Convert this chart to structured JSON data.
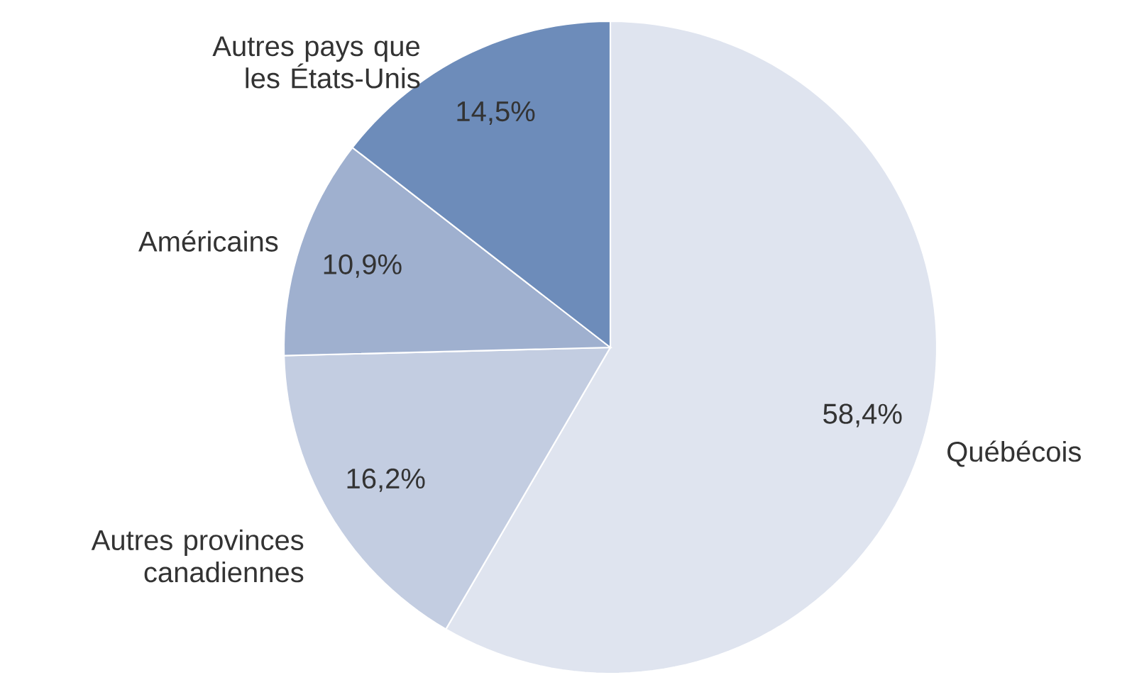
{
  "chart_data": {
    "type": "pie",
    "categories": [
      "Québécois",
      "Autres provinces canadiennes",
      "Américains",
      "Autres pays que les États-Unis"
    ],
    "values": [
      58.4,
      16.2,
      10.9,
      14.5
    ],
    "value_labels": [
      "58,4%",
      "16,2%",
      "10,9%",
      "14,5%"
    ],
    "colors": [
      "#dfe4ef",
      "#c3cde1",
      "#9fb0cf",
      "#6d8cba"
    ]
  }
}
